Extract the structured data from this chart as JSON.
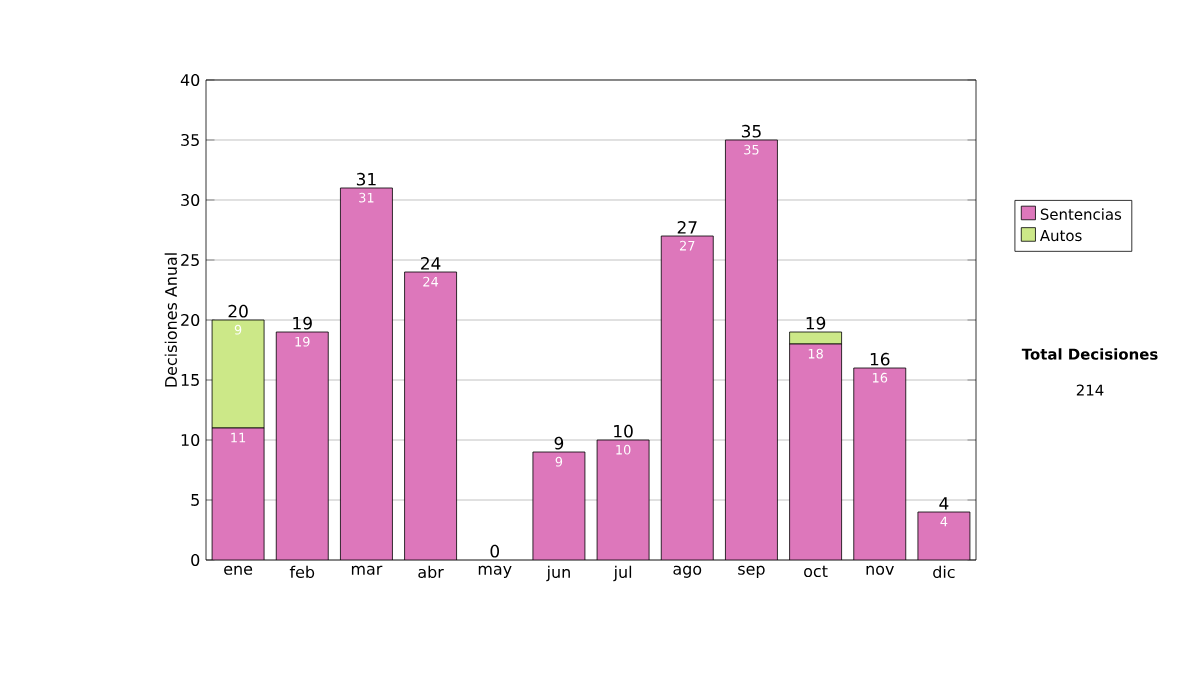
{
  "chart_data": {
    "type": "bar",
    "stacked": true,
    "ylabel": "Decisiones Anual",
    "categories": [
      "ene",
      "feb",
      "mar",
      "abr",
      "may",
      "jun",
      "jul",
      "ago",
      "sep",
      "oct",
      "nov",
      "dic"
    ],
    "series": [
      {
        "name": "Sentencias",
        "color": "#dd77bb",
        "values": [
          11,
          19,
          31,
          24,
          0,
          9,
          10,
          27,
          35,
          18,
          16,
          4
        ],
        "value_labels": [
          "11",
          "19",
          "31",
          "24",
          null,
          "9",
          "10",
          "27",
          "35",
          "18",
          "16",
          "4"
        ]
      },
      {
        "name": "Autos",
        "color": "#cce888",
        "values": [
          9,
          0,
          0,
          0,
          0,
          0,
          0,
          0,
          0,
          1,
          0,
          0
        ],
        "value_labels": [
          "9",
          null,
          null,
          null,
          null,
          null,
          null,
          null,
          null,
          null,
          null,
          null
        ]
      }
    ],
    "totals": [
      "20",
      "19",
      "31",
      "24",
      "0",
      "9",
      "10",
      "27",
      "35",
      "19",
      "16",
      "4"
    ],
    "ylim": [
      0,
      40
    ],
    "yticks": [
      0,
      5,
      10,
      15,
      20,
      25,
      30,
      35,
      40
    ],
    "grid": "y",
    "legend": "right",
    "annotations": [
      "Total Decisiones",
      "214"
    ]
  }
}
